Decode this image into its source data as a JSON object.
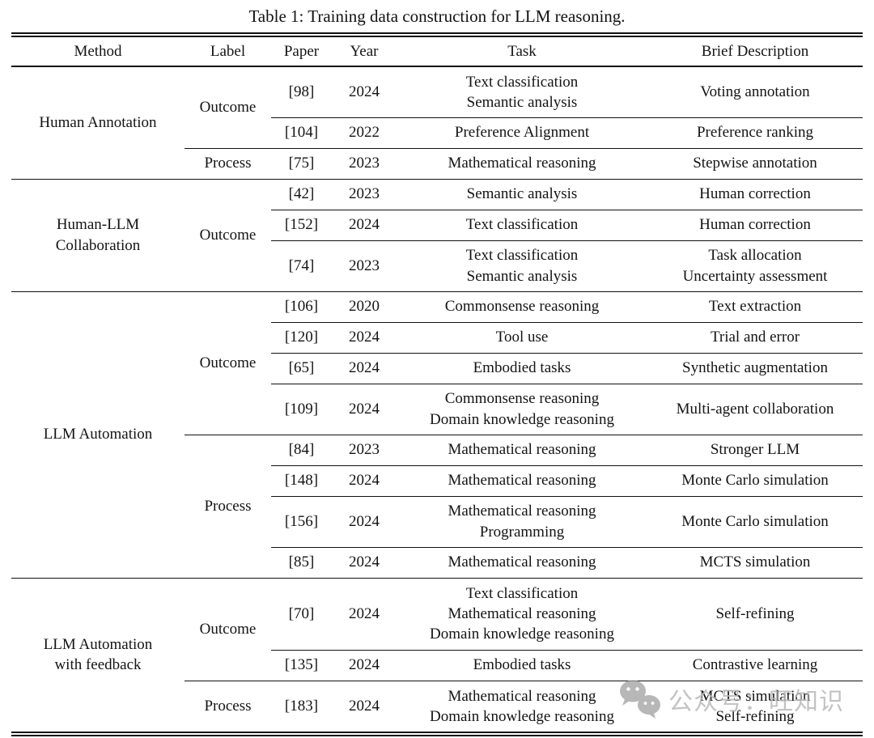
{
  "title": "Table 1: Training data construction for LLM reasoning.",
  "table": {
    "columns": [
      "Method",
      "Label",
      "Paper",
      "Year",
      "Task",
      "Brief Description"
    ],
    "groups": [
      {
        "method": "Human Annotation",
        "label_groups": [
          {
            "label": "Outcome",
            "rows": [
              {
                "paper": "[98]",
                "year": "2024",
                "task": [
                  "Text classification",
                  "Semantic analysis"
                ],
                "description": [
                  "Voting annotation"
                ]
              },
              {
                "paper": "[104]",
                "year": "2022",
                "task": [
                  "Preference Alignment"
                ],
                "description": [
                  "Preference ranking"
                ]
              }
            ]
          },
          {
            "label": "Process",
            "rows": [
              {
                "paper": "[75]",
                "year": "2023",
                "task": [
                  "Mathematical reasoning"
                ],
                "description": [
                  "Stepwise annotation"
                ]
              }
            ]
          }
        ]
      },
      {
        "method": "Human-LLM\nCollaboration",
        "label_groups": [
          {
            "label": "Outcome",
            "rows": [
              {
                "paper": "[42]",
                "year": "2023",
                "task": [
                  "Semantic analysis"
                ],
                "description": [
                  "Human correction"
                ]
              },
              {
                "paper": "[152]",
                "year": "2024",
                "task": [
                  "Text classification"
                ],
                "description": [
                  "Human correction"
                ]
              },
              {
                "paper": "[74]",
                "year": "2023",
                "task": [
                  "Text classification",
                  "Semantic analysis"
                ],
                "description": [
                  "Task allocation",
                  "Uncertainty assessment"
                ]
              }
            ]
          }
        ]
      },
      {
        "method": "LLM Automation",
        "label_groups": [
          {
            "label": "Outcome",
            "rows": [
              {
                "paper": "[106]",
                "year": "2020",
                "task": [
                  "Commonsense reasoning"
                ],
                "description": [
                  "Text extraction"
                ]
              },
              {
                "paper": "[120]",
                "year": "2024",
                "task": [
                  "Tool use"
                ],
                "description": [
                  "Trial and error"
                ]
              },
              {
                "paper": "[65]",
                "year": "2024",
                "task": [
                  "Embodied tasks"
                ],
                "description": [
                  "Synthetic augmentation"
                ]
              },
              {
                "paper": "[109]",
                "year": "2024",
                "task": [
                  "Commonsense reasoning",
                  "Domain knowledge reasoning"
                ],
                "description": [
                  "Multi-agent collaboration"
                ]
              }
            ]
          },
          {
            "label": "Process",
            "rows": [
              {
                "paper": "[84]",
                "year": "2023",
                "task": [
                  "Mathematical reasoning"
                ],
                "description": [
                  "Stronger LLM"
                ]
              },
              {
                "paper": "[148]",
                "year": "2024",
                "task": [
                  "Mathematical reasoning"
                ],
                "description": [
                  "Monte Carlo simulation"
                ]
              },
              {
                "paper": "[156]",
                "year": "2024",
                "task": [
                  "Mathematical reasoning",
                  "Programming"
                ],
                "description": [
                  "Monte Carlo simulation"
                ]
              },
              {
                "paper": "[85]",
                "year": "2024",
                "task": [
                  "Mathematical reasoning"
                ],
                "description": [
                  "MCTS simulation"
                ]
              }
            ]
          }
        ]
      },
      {
        "method": "LLM Automation\nwith feedback",
        "label_groups": [
          {
            "label": "Outcome",
            "rows": [
              {
                "paper": "[70]",
                "year": "2024",
                "task": [
                  "Text classification",
                  "Mathematical reasoning",
                  "Domain knowledge reasoning"
                ],
                "description": [
                  "Self-refining"
                ]
              },
              {
                "paper": "[135]",
                "year": "2024",
                "task": [
                  "Embodied tasks"
                ],
                "description": [
                  "Contrastive learning"
                ]
              }
            ]
          },
          {
            "label": "Process",
            "rows": [
              {
                "paper": "[183]",
                "year": "2024",
                "task": [
                  "Mathematical reasoning",
                  "Domain knowledge reasoning"
                ],
                "description": [
                  "MCTS simulation",
                  "Self-refining"
                ]
              }
            ]
          }
        ]
      }
    ]
  },
  "watermark": {
    "icon": "wechat-icon",
    "text": "公众号：旺知识",
    "icon_color": "#a0a0a0",
    "text_color": "#b9b9b9"
  }
}
